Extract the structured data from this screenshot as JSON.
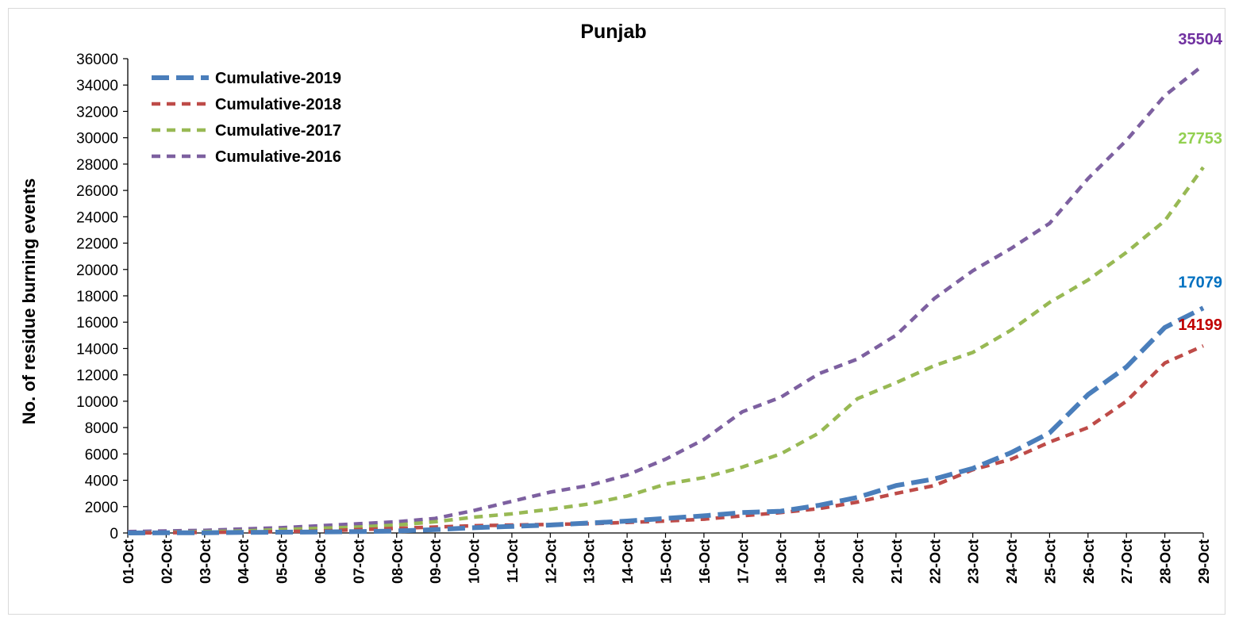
{
  "chart_data": {
    "type": "line",
    "title": "Punjab",
    "xlabel": "",
    "ylabel": "No. of residue burning events",
    "ylim": [
      0,
      36000
    ],
    "yticks": [
      0,
      2000,
      4000,
      6000,
      8000,
      10000,
      12000,
      14000,
      16000,
      18000,
      20000,
      22000,
      24000,
      26000,
      28000,
      30000,
      32000,
      34000,
      36000
    ],
    "legend_position": "top-left",
    "grid": false,
    "categories": [
      "01-Oct",
      "02-Oct",
      "03-Oct",
      "04-Oct",
      "05-Oct",
      "06-Oct",
      "07-Oct",
      "08-Oct",
      "09-Oct",
      "10-Oct",
      "11-Oct",
      "12-Oct",
      "13-Oct",
      "14-Oct",
      "15-Oct",
      "16-Oct",
      "17-Oct",
      "18-Oct",
      "19-Oct",
      "20-Oct",
      "21-Oct",
      "22-Oct",
      "23-Oct",
      "24-Oct",
      "25-Oct",
      "26-Oct",
      "27-Oct",
      "28-Oct",
      "29-Oct"
    ],
    "series": [
      {
        "name": "Cumulative-2019",
        "color": "#4a7ebb",
        "dash": "long",
        "values": [
          0,
          10,
          20,
          40,
          60,
          80,
          100,
          150,
          250,
          400,
          500,
          600,
          750,
          900,
          1100,
          1300,
          1550,
          1650,
          2100,
          2700,
          3600,
          4100,
          4900,
          6100,
          7600,
          10500,
          12600,
          15600,
          17079
        ],
        "end_label": "17079",
        "end_label_color": "#0070c0"
      },
      {
        "name": "Cumulative-2018",
        "color": "#be4b48",
        "dash": "short",
        "values": [
          0,
          20,
          40,
          70,
          100,
          150,
          250,
          350,
          450,
          550,
          600,
          650,
          700,
          800,
          900,
          1050,
          1300,
          1550,
          1850,
          2350,
          3000,
          3600,
          4800,
          5600,
          6900,
          8000,
          10000,
          12900,
          14199
        ],
        "end_label": "14199",
        "end_label_color": "#c00000"
      },
      {
        "name": "Cumulative-2017",
        "color": "#98b954",
        "dash": "short",
        "values": [
          0,
          50,
          100,
          150,
          250,
          350,
          450,
          600,
          850,
          1200,
          1450,
          1800,
          2200,
          2800,
          3700,
          4200,
          5000,
          6000,
          7600,
          10200,
          11400,
          12700,
          13700,
          15400,
          17500,
          19200,
          21300,
          23700,
          27753
        ],
        "end_label": "27753",
        "end_label_color": "#92d050"
      },
      {
        "name": "Cumulative-2016",
        "color": "#7d60a0",
        "dash": "short",
        "values": [
          100,
          150,
          200,
          300,
          400,
          550,
          700,
          850,
          1100,
          1700,
          2400,
          3100,
          3600,
          4400,
          5600,
          7100,
          9200,
          10300,
          12100,
          13200,
          15000,
          17800,
          19900,
          21600,
          23500,
          26900,
          29800,
          33200,
          35504
        ],
        "end_label": "35504",
        "end_label_color": "#7030a0"
      }
    ]
  }
}
